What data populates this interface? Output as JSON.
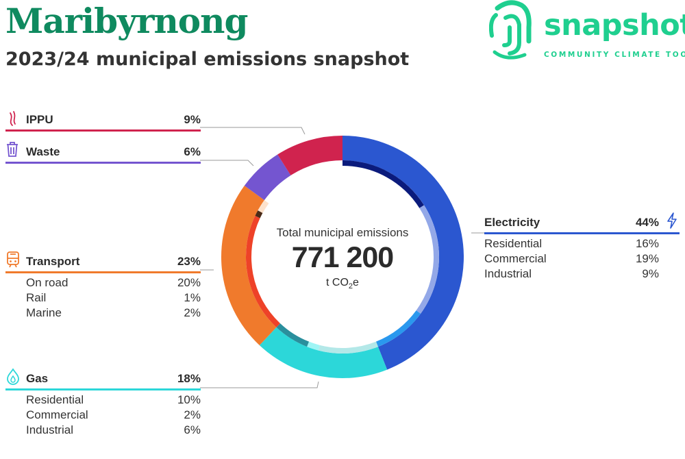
{
  "header": {
    "title": "Maribyrnong",
    "subtitle": "2023/24 municipal emissions snapshot"
  },
  "logo": {
    "word": "snapshot",
    "tagline": "COMMUNITY CLIMATE TOOL",
    "icon": "fingerprint-icon",
    "color": "#1fcf8f"
  },
  "center": {
    "label": "Total municipal emissions",
    "value": "771 200",
    "unit_prefix": "t CO",
    "unit_sub": "2",
    "unit_suffix": "e"
  },
  "categories": {
    "ippu": {
      "name": "IPPU",
      "pct": "9%",
      "icon": "fire-icon",
      "color": "#d0234e"
    },
    "waste": {
      "name": "Waste",
      "pct": "6%",
      "icon": "trash-icon",
      "color": "#7455d0"
    },
    "transport": {
      "name": "Transport",
      "pct": "23%",
      "icon": "train-icon",
      "color": "#f07a2c",
      "subs": [
        {
          "name": "On road",
          "pct": "20%"
        },
        {
          "name": "Rail",
          "pct": "1%"
        },
        {
          "name": "Marine",
          "pct": "2%"
        }
      ]
    },
    "gas": {
      "name": "Gas",
      "pct": "18%",
      "icon": "flame-icon",
      "color": "#2cd7d9",
      "subs": [
        {
          "name": "Residential",
          "pct": "10%"
        },
        {
          "name": "Commercial",
          "pct": "2%"
        },
        {
          "name": "Industrial",
          "pct": "6%"
        }
      ]
    },
    "electricity": {
      "name": "Electricity",
      "pct": "44%",
      "icon": "lightning-icon",
      "color": "#2b57d0",
      "subs": [
        {
          "name": "Residential",
          "pct": "16%"
        },
        {
          "name": "Commercial",
          "pct": "19%"
        },
        {
          "name": "Industrial",
          "pct": "9%"
        }
      ]
    }
  },
  "chart_data": {
    "type": "pie",
    "variant": "donut",
    "total": 771200,
    "unit": "t CO2e",
    "series": [
      {
        "name": "Electricity",
        "value": 44,
        "color": "#2b57d0",
        "subs": [
          {
            "name": "Residential",
            "value": 16,
            "color": "#0b1b7c"
          },
          {
            "name": "Commercial",
            "value": 19,
            "color": "#93a8e8"
          },
          {
            "name": "Industrial",
            "value": 9,
            "color": "#2a98ee"
          }
        ]
      },
      {
        "name": "Gas",
        "value": 18,
        "color": "#2cd7d9",
        "subs": [
          {
            "name": "Residential",
            "value": 10,
            "color": "#b3e8e8"
          },
          {
            "name": "Commercial",
            "value": 2,
            "color": "#9ff5f5"
          },
          {
            "name": "Industrial",
            "value": 6,
            "color": "#2a8f9d"
          }
        ]
      },
      {
        "name": "Transport",
        "value": 23,
        "color": "#f07a2c",
        "subs": [
          {
            "name": "On road",
            "value": 20,
            "color": "#ee4228"
          },
          {
            "name": "Rail",
            "value": 1,
            "color": "#4a2a17"
          },
          {
            "name": "Marine",
            "value": 2,
            "color": "#fde2cc"
          }
        ]
      },
      {
        "name": "Waste",
        "value": 6,
        "color": "#7455d0"
      },
      {
        "name": "IPPU",
        "value": 9,
        "color": "#d0234e"
      }
    ]
  }
}
